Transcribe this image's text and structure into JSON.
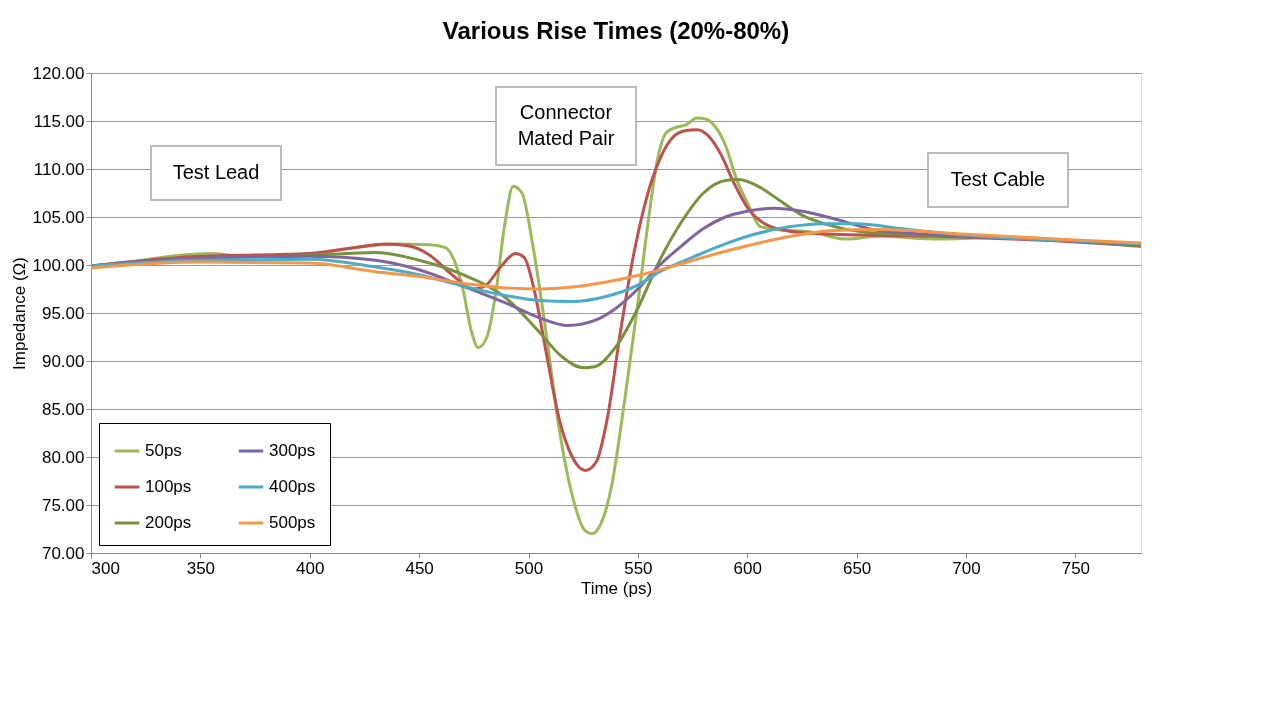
{
  "chart_data": {
    "type": "line",
    "title": "Various Rise Times (20%-80%)",
    "xlabel": "Time (ps)",
    "ylabel": "Impedance (Ω)",
    "xlim": [
      300,
      780
    ],
    "xticks": [
      300,
      350,
      400,
      450,
      500,
      550,
      600,
      650,
      700,
      750
    ],
    "ylim": [
      70,
      120
    ],
    "yticks": [
      {
        "value": 70,
        "label": "70.00"
      },
      {
        "value": 75,
        "label": "75.00"
      },
      {
        "value": 80,
        "label": "80.00"
      },
      {
        "value": 85,
        "label": "85.00"
      },
      {
        "value": 90,
        "label": "90.00"
      },
      {
        "value": 95,
        "label": "95.00"
      },
      {
        "value": 100,
        "label": "100.00"
      },
      {
        "value": 105,
        "label": "105.00"
      },
      {
        "value": 110,
        "label": "110.00"
      },
      {
        "value": 115,
        "label": "115.00"
      },
      {
        "value": 120,
        "label": "120.00"
      }
    ],
    "grid": "y",
    "legend": "bottom left",
    "marker": "none",
    "line_style": "solid",
    "annotations": [
      "Test Lead",
      "Connector\nMated Pair",
      "Test Cable"
    ],
    "series": [
      {
        "name": "50ps",
        "color": "#9bbb59",
        "x": [
          300,
          320,
          340,
          355,
          370,
          400,
          420,
          440,
          455,
          462,
          466,
          470,
          474,
          477,
          481,
          485,
          489,
          493,
          497,
          502,
          508,
          514,
          520,
          526,
          529,
          533,
          538,
          544,
          550,
          555,
          559,
          563,
          567,
          572,
          577,
          581,
          585,
          590,
          595,
          600,
          606,
          614,
          630,
          645,
          660,
          688,
          720,
          750,
          780
        ],
        "values": [
          99.9,
          100.4,
          101.0,
          101.2,
          100.9,
          101.1,
          101.8,
          102.2,
          102.1,
          101.8,
          100.5,
          97.5,
          93.0,
          91.4,
          92.5,
          97.0,
          104.0,
          108.2,
          107.5,
          102.0,
          93.0,
          83.0,
          76.0,
          72.3,
          72.0,
          73.0,
          77.0,
          86.0,
          96.0,
          105.0,
          111.0,
          113.8,
          114.3,
          114.6,
          115.3,
          115.2,
          114.5,
          112.5,
          109.0,
          106.5,
          104.0,
          103.7,
          103.4,
          102.7,
          103.0,
          102.7,
          102.9,
          102.5,
          101.9
        ]
      },
      {
        "name": "100ps",
        "color": "#c0504d",
        "x": [
          300,
          350,
          400,
          420,
          435,
          445,
          455,
          465,
          475,
          480,
          488,
          494,
          498,
          503,
          508,
          514,
          520,
          526,
          531,
          536,
          542,
          548,
          554,
          560,
          566,
          572,
          577,
          582,
          588,
          594,
          600,
          608,
          620,
          640,
          660,
          700,
          750,
          780
        ],
        "values": [
          99.9,
          100.9,
          101.2,
          101.8,
          102.2,
          102.0,
          101.0,
          99.0,
          97.5,
          97.8,
          100.0,
          101.2,
          100.8,
          97.0,
          91.0,
          84.0,
          80.0,
          78.6,
          79.5,
          84.0,
          93.0,
          101.0,
          107.0,
          111.0,
          113.3,
          114.0,
          114.1,
          113.5,
          111.5,
          108.5,
          106.0,
          104.3,
          103.5,
          103.2,
          103.1,
          102.9,
          102.4,
          102.0
        ]
      },
      {
        "name": "200ps",
        "color": "#77933c",
        "x": [
          300,
          350,
          400,
          430,
          450,
          470,
          490,
          505,
          515,
          525,
          530,
          540,
          550,
          560,
          570,
          580,
          590,
          596,
          605,
          615,
          625,
          640,
          660,
          700,
          750,
          780
        ],
        "values": [
          99.9,
          100.7,
          101.0,
          101.3,
          100.5,
          99.0,
          96.5,
          93.0,
          90.5,
          89.3,
          89.4,
          91.5,
          95.5,
          100.5,
          104.5,
          107.5,
          108.8,
          108.9,
          108.2,
          106.7,
          105.2,
          104.0,
          103.3,
          103.0,
          102.5,
          102.0
        ]
      },
      {
        "name": "300ps",
        "color": "#8064a2",
        "x": [
          300,
          350,
          400,
          430,
          450,
          470,
          490,
          505,
          518,
          530,
          540,
          550,
          560,
          570,
          580,
          590,
          600,
          612,
          625,
          640,
          660,
          700,
          750,
          780
        ],
        "values": [
          99.9,
          100.7,
          100.9,
          100.5,
          99.5,
          97.8,
          96.0,
          94.5,
          93.7,
          94.2,
          95.5,
          97.5,
          100.0,
          102.0,
          103.8,
          105.0,
          105.6,
          105.9,
          105.6,
          104.8,
          103.6,
          103.0,
          102.5,
          102.1
        ]
      },
      {
        "name": "400ps",
        "color": "#4bacc6",
        "x": [
          300,
          350,
          400,
          430,
          450,
          470,
          490,
          505,
          520,
          535,
          550,
          560,
          575,
          590,
          605,
          620,
          635,
          650,
          670,
          700,
          750,
          780
        ],
        "values": [
          99.9,
          100.5,
          100.6,
          99.8,
          99.0,
          97.8,
          96.8,
          96.3,
          96.2,
          96.7,
          97.9,
          99.3,
          100.8,
          102.2,
          103.3,
          104.0,
          104.3,
          104.3,
          103.8,
          103.1,
          102.5,
          102.2
        ]
      },
      {
        "name": "500ps",
        "color": "#f79646",
        "x": [
          300,
          350,
          400,
          430,
          450,
          470,
          490,
          505,
          520,
          535,
          550,
          565,
          580,
          600,
          620,
          640,
          660,
          700,
          750,
          780
        ],
        "values": [
          99.7,
          100.3,
          100.2,
          99.3,
          98.8,
          98.1,
          97.6,
          97.5,
          97.7,
          98.2,
          98.9,
          99.8,
          100.8,
          102.0,
          103.0,
          103.6,
          103.7,
          103.2,
          102.6,
          102.3
        ]
      }
    ]
  }
}
